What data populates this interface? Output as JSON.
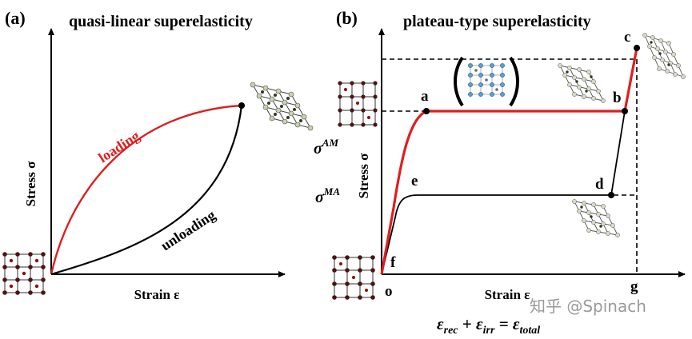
{
  "panel_a": {
    "label": "(a)",
    "title": "quasi-linear superelasticity",
    "y_axis_label": "Stress σ",
    "x_axis_label": "Strain ε",
    "loading_label": "loading",
    "unloading_label": "unloading"
  },
  "panel_b": {
    "label": "(b)",
    "title": "plateau-type superelasticity",
    "y_axis_label": "Stress σ",
    "x_axis_label": "Strain ε",
    "points": {
      "a": "a",
      "b": "b",
      "c": "c",
      "d": "d",
      "e": "e",
      "f": "f",
      "o": "o",
      "g": "g"
    },
    "sigma_am": {
      "base": "σ",
      "sup": "AM"
    },
    "sigma_ma": {
      "base": "σ",
      "sup": "MA"
    },
    "equation": {
      "t1": "ε",
      "s1": "rec",
      "plus": " + ",
      "t2": "ε",
      "s2": "irr",
      "eq": " = ",
      "t3": "ε",
      "s3": "total"
    }
  },
  "watermark": "知乎 @Spinach",
  "colors": {
    "loading": "#dd1f1f",
    "curve": "#000000",
    "atom_dark": "#4a1414",
    "atom_light": "#d6dcc0",
    "atom_blue": "#5aa0d8"
  }
}
